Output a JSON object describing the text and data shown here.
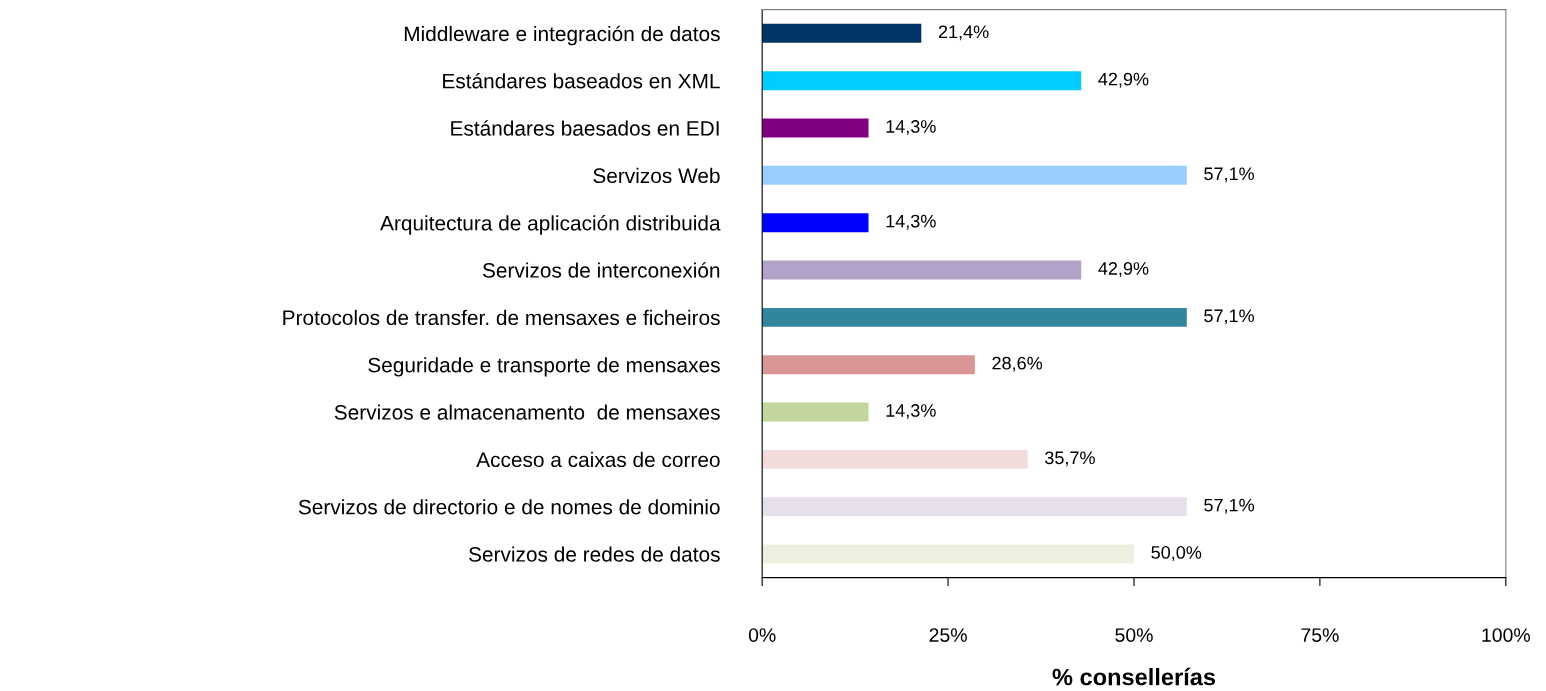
{
  "chart_data": {
    "type": "bar",
    "orientation": "horizontal",
    "xlabel": "% consellerías",
    "categories": [
      "Middleware e integración de datos",
      "Estándares baseados en XML",
      "Estándares baesados en EDI",
      "Servizos Web",
      "Arquitectura de aplicación distribuida",
      "Servizos de interconexión",
      "Protocolos de transfer. de mensaxes e ficheiros",
      "Seguridade e transporte de mensaxes",
      "Servizos e almacenamento  de mensaxes",
      "Acceso a caixas de correo",
      "Servizos de directorio e de nomes de dominio",
      "Servizos de redes de datos"
    ],
    "values": [
      21.4,
      42.9,
      14.3,
      57.1,
      14.3,
      42.9,
      57.1,
      28.6,
      14.3,
      35.7,
      57.1,
      50.0
    ],
    "value_labels": [
      "21,4%",
      "42,9%",
      "14,3%",
      "57,1%",
      "14,3%",
      "42,9%",
      "57,1%",
      "28,6%",
      "14,3%",
      "35,7%",
      "57,1%",
      "50,0%"
    ],
    "colors": [
      "#003366",
      "#00ccff",
      "#800080",
      "#99ccff",
      "#0000ff",
      "#b3a2c7",
      "#31859c",
      "#d99694",
      "#c3d69b",
      "#f2dcdb",
      "#e6e0ec",
      "#ebf1de"
    ],
    "xlim": [
      0,
      100
    ],
    "xticks": [
      {
        "value": 0,
        "label": "0%"
      },
      {
        "value": 25,
        "label": "25%"
      },
      {
        "value": 50,
        "label": "50%"
      },
      {
        "value": 75,
        "label": "75%"
      },
      {
        "value": 100,
        "label": "100%"
      }
    ],
    "grid": false,
    "legend": false
  }
}
